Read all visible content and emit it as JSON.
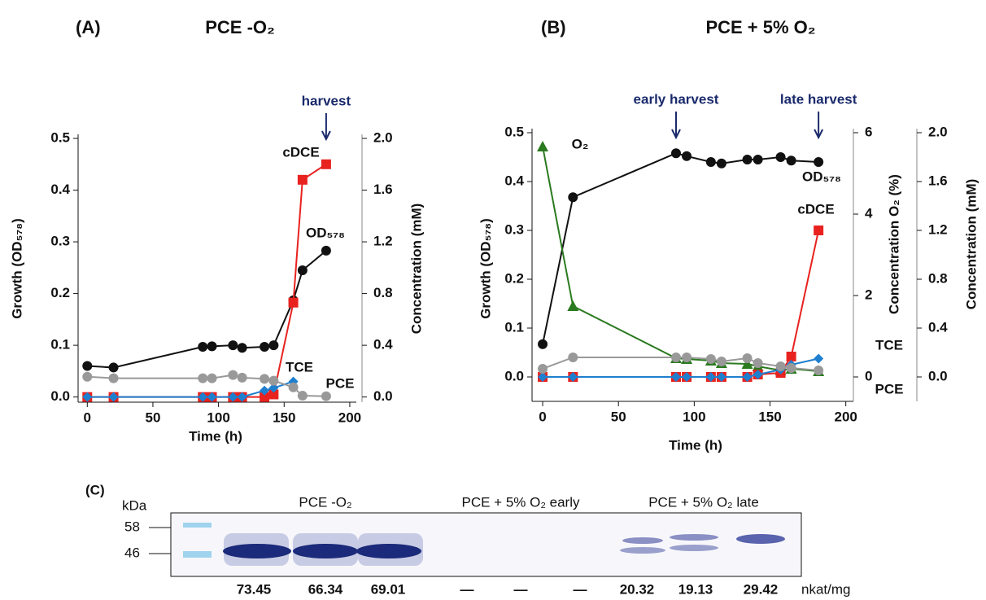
{
  "chart_data": [
    {
      "type": "line",
      "panel": "(A)",
      "title": "PCE -O₂",
      "xlabel": "Time (h)",
      "ylabel": "Growth (OD₅₇₈)",
      "y2label": "Concentration (mM)",
      "x": [
        0,
        20,
        88,
        95,
        111,
        118,
        135,
        142,
        157,
        164,
        182
      ],
      "xlim": [
        -7,
        205
      ],
      "xticks": [
        0,
        50,
        100,
        150,
        200
      ],
      "ylim": [
        -0.01,
        0.5
      ],
      "yticks": [
        {
          "value": 0,
          "label": "0.0"
        },
        0.1,
        0.2,
        0.3,
        0.4,
        0.5
      ],
      "y2lim": [
        -0.04,
        2.0
      ],
      "y2ticks": [
        {
          "value": 0,
          "label": "0.0"
        },
        0.4,
        0.8,
        1.2,
        1.6,
        {
          "value": 2,
          "label": "2.0"
        }
      ],
      "series": [
        {
          "name": "OD₅₇₈",
          "color": "#111111",
          "marker": "circle",
          "axis": "y",
          "values": [
            0.06,
            0.057,
            0.097,
            0.098,
            0.1,
            0.095,
            0.097,
            0.1,
            0.187,
            0.245,
            0.283
          ]
        },
        {
          "name": "cDCE",
          "color": "#e8221f",
          "marker": "square",
          "axis": "y2",
          "values": [
            0,
            0,
            0,
            0,
            0,
            0,
            0,
            0.02,
            0.73,
            1.68,
            1.8
          ]
        },
        {
          "name": "TCE",
          "color": "#1f7fcf",
          "marker": "diamond",
          "axis": "y2",
          "values": [
            0,
            0,
            0,
            0,
            0,
            0,
            0.05,
            0.07,
            0.12,
            null,
            null
          ]
        },
        {
          "name": "PCE",
          "color": "#999999",
          "marker": "circle",
          "axis": "y2",
          "values": [
            0.157,
            0.145,
            0.145,
            0.145,
            0.17,
            0.15,
            0.14,
            0.126,
            0.075,
            0.01,
            0.006
          ]
        }
      ],
      "annotations": [
        {
          "text": "harvest",
          "x": 182
        }
      ]
    },
    {
      "type": "line",
      "panel": "(B)",
      "title": "PCE + 5% O₂",
      "xlabel": "Time (h)",
      "ylabel": "Growth (OD₅₇₈)",
      "y2label": "Concentration O₂ (%)",
      "y3label": "Concentration (mM)",
      "x": [
        0,
        20,
        88,
        95,
        111,
        118,
        135,
        142,
        157,
        164,
        182
      ],
      "xlim": [
        -7,
        205
      ],
      "xticks": [
        0,
        50,
        100,
        150,
        200
      ],
      "ylim": [
        -0.05,
        0.5
      ],
      "yticks": [
        {
          "value": 0,
          "label": "0.0"
        },
        0.1,
        0.2,
        0.3,
        0.4,
        0.5
      ],
      "y2lim": [
        -0.6,
        6
      ],
      "y2ticks": [
        0,
        2,
        4,
        6
      ],
      "y3lim": [
        -0.2,
        2.0
      ],
      "y3ticks": [
        {
          "value": 0,
          "label": "0.0"
        },
        0.4,
        0.8,
        1.2,
        1.6,
        {
          "value": 2,
          "label": "2.0"
        }
      ],
      "series": [
        {
          "name": "OD₅₇₈",
          "color": "#111111",
          "marker": "circle",
          "axis": "y",
          "values": [
            0.067,
            0.368,
            0.458,
            0.452,
            0.44,
            0.437,
            0.445,
            0.445,
            0.45,
            0.443,
            0.44
          ]
        },
        {
          "name": "O₂",
          "color": "#2a7a1f",
          "marker": "triangle",
          "axis": "y2",
          "values": [
            5.66,
            1.74,
            0.46,
            0.44,
            0.4,
            0.34,
            0.32,
            0.26,
            0.16,
            0.2,
            0.14
          ]
        },
        {
          "name": "cDCE",
          "color": "#e8221f",
          "marker": "square",
          "axis": "y3",
          "values": [
            0,
            0,
            0,
            0,
            0,
            0,
            0,
            0.02,
            0.033,
            0.167,
            1.2
          ]
        },
        {
          "name": "TCE",
          "color": "#1f7fcf",
          "marker": "diamond",
          "axis": "y3",
          "values": [
            0,
            0,
            0,
            0,
            0,
            0,
            0,
            0.02,
            0.06,
            0.1,
            0.15
          ]
        },
        {
          "name": "PCE",
          "color": "#999999",
          "marker": "circle",
          "axis": "y3",
          "values": [
            0.067,
            0.16,
            0.16,
            0.16,
            0.147,
            0.127,
            0.153,
            0.113,
            0.087,
            0.073,
            0.053
          ]
        }
      ],
      "annotations": [
        {
          "text": "early harvest",
          "x": 88
        },
        {
          "text": "late harvest",
          "x": 182
        }
      ]
    }
  ],
  "gel": {
    "panel": "(C)",
    "unit_label": "kDa",
    "markers": [
      58,
      46
    ],
    "groups": [
      "PCE -O₂",
      "PCE + 5% O₂ early",
      "PCE + 5% O₂ late"
    ],
    "activities": [
      73.45,
      66.34,
      69.01,
      "—",
      "—",
      "—",
      20.32,
      19.13,
      29.42
    ],
    "activity_unit": "nkat/mg"
  }
}
